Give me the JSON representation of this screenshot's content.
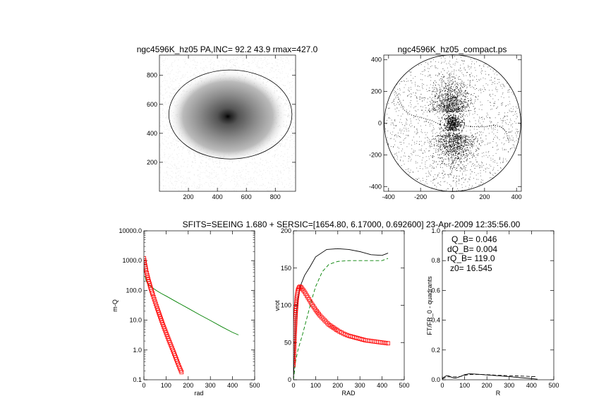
{
  "header": {
    "main_title": "SFITS=SEEING 1.680 + SERSIC=[1654.80, 6.17000, 0.692600]  23-Apr-2009 12:35:56.00"
  },
  "chart_data": [
    {
      "id": "image_panel",
      "type": "heatmap",
      "title": "ngc4596K_hz05 PA,INC= 92.2 43.9 rmax=427.0",
      "xlim": [
        0,
        940
      ],
      "ylim": [
        0,
        940
      ],
      "xticks": [
        200,
        400,
        600,
        800
      ],
      "yticks": [
        200,
        400,
        600,
        800
      ],
      "center": [
        490,
        530
      ],
      "ellipse_semi_axes": [
        425,
        307
      ],
      "colors": {
        "background": "#ffffff",
        "core": "#000000",
        "ellipse": "#000000"
      }
    },
    {
      "id": "compact_panel",
      "type": "scatter",
      "title": "ngc4596K_hz05_compact.ps",
      "xlim": [
        -430,
        430
      ],
      "ylim": [
        -430,
        430
      ],
      "xticks": [
        -400,
        -200,
        0,
        200,
        400
      ],
      "yticks": [
        -400,
        -200,
        0,
        200,
        400
      ],
      "circle_radius": 427,
      "inner_circle_radius": 75
    },
    {
      "id": "density_panel",
      "type": "line",
      "xlabel": "rad",
      "ylabel": "m-Q",
      "xlim": [
        0,
        500
      ],
      "ylim": [
        0.1,
        10000
      ],
      "log_y": true,
      "xticks": [
        0,
        100,
        200,
        300,
        400,
        500
      ],
      "yticks": [
        {
          "v": 10000,
          "label": "10000.0"
        },
        {
          "v": 1000,
          "label": "1000.0"
        },
        {
          "v": 100,
          "label": "100.0"
        },
        {
          "v": 10,
          "label": "10.0"
        },
        {
          "v": 1,
          "label": "1.0"
        },
        {
          "v": 0.1,
          "label": "0.1"
        }
      ],
      "series": [
        {
          "color": "#008000",
          "style": "solid",
          "x": [
            5,
            10,
            20,
            40,
            60,
            80,
            100,
            150,
            200,
            250,
            300,
            350,
            400,
            427
          ],
          "y": [
            300,
            210,
            160,
            120,
            95,
            78,
            65,
            40,
            25,
            15.5,
            9.8,
            6.1,
            3.9,
            3.2
          ]
        },
        {
          "color": "#ff0000",
          "style": "markers",
          "x": [
            0,
            5,
            10,
            15,
            20,
            30,
            40,
            50,
            60,
            70,
            80,
            90,
            100,
            110,
            120,
            130,
            140,
            150,
            160,
            170
          ],
          "y": [
            1200,
            720,
            470,
            320,
            230,
            125,
            72,
            42,
            25,
            15.5,
            9.6,
            6,
            3.8,
            2.4,
            1.55,
            1,
            0.65,
            0.42,
            0.27,
            0.18
          ]
        }
      ]
    },
    {
      "id": "rotation_panel",
      "type": "line",
      "xlabel": "RAD",
      "ylabel": "vrot",
      "xlim": [
        0,
        500
      ],
      "ylim": [
        0,
        200
      ],
      "xticks": [
        0,
        100,
        200,
        300,
        400,
        500
      ],
      "yticks": [
        0,
        50,
        100,
        150,
        200
      ],
      "series": [
        {
          "color": "#000000",
          "style": "solid",
          "x": [
            0,
            5,
            10,
            20,
            30,
            50,
            75,
            100,
            150,
            200,
            250,
            300,
            350,
            400,
            427
          ],
          "y": [
            0,
            40,
            80,
            110,
            125,
            140,
            152,
            165,
            175,
            176,
            175,
            172,
            168,
            167,
            170
          ]
        },
        {
          "color": "#008000",
          "style": "dashed",
          "x": [
            0,
            10,
            20,
            40,
            60,
            80,
            100,
            130,
            160,
            200,
            250,
            300,
            350,
            400,
            427
          ],
          "y": [
            0,
            25,
            40,
            60,
            82,
            105,
            125,
            145,
            155,
            159,
            160,
            160,
            160,
            160,
            163
          ]
        },
        {
          "color": "#ff0000",
          "style": "markers",
          "x": [
            0,
            5,
            10,
            15,
            20,
            25,
            30,
            35,
            40,
            50,
            60,
            70,
            80,
            100,
            120,
            140,
            160,
            180,
            200,
            225,
            250,
            275,
            300,
            325,
            350,
            375,
            400,
            427
          ],
          "y": [
            20,
            60,
            90,
            110,
            120,
            124,
            125,
            124,
            122,
            118,
            113,
            108,
            103,
            94,
            86,
            80,
            74,
            70,
            66,
            62,
            59,
            57,
            55,
            53,
            52,
            51,
            50,
            49
          ]
        }
      ]
    },
    {
      "id": "quadrants_panel",
      "type": "line",
      "xlabel": "R",
      "ylabel": "FT/FR_0 - quadrants",
      "xlim": [
        0,
        500
      ],
      "ylim": [
        0,
        1
      ],
      "xticks": [
        0,
        100,
        200,
        300,
        400,
        500
      ],
      "yticks": [
        {
          "v": 0,
          "label": "0.0"
        },
        {
          "v": 0.2,
          "label": "0.2"
        },
        {
          "v": 0.4,
          "label": "0.4"
        },
        {
          "v": 0.6,
          "label": "0.6"
        },
        {
          "v": 0.8,
          "label": "0.8"
        },
        {
          "v": 1.0,
          "label": "1.0"
        }
      ],
      "annotations": [
        "Q_B=  0.046",
        "dQ_B=  0.004",
        "rQ_B=  119.0",
        "z0= 16.545"
      ],
      "series": [
        {
          "color": "#000000",
          "style": "solid",
          "x": [
            0,
            10,
            20,
            30,
            40,
            50,
            60,
            70,
            80,
            100,
            120,
            140,
            160,
            200,
            250,
            300,
            350,
            400,
            427
          ],
          "y": [
            0.01,
            0.02,
            0.028,
            0.025,
            0.018,
            0.013,
            0.012,
            0.016,
            0.022,
            0.034,
            0.04,
            0.039,
            0.037,
            0.032,
            0.027,
            0.021,
            0.014,
            0.008,
            0.004
          ]
        },
        {
          "color": "#000000",
          "style": "dashed",
          "x": [
            0,
            20,
            40,
            60,
            80,
            100,
            120,
            140,
            160,
            200,
            250,
            300,
            350,
            400,
            427
          ],
          "y": [
            0.005,
            0.02,
            0.02,
            0.02,
            0.022,
            0.03,
            0.035,
            0.036,
            0.036,
            0.034,
            0.03,
            0.027,
            0.025,
            0.022,
            0.021
          ]
        }
      ]
    }
  ]
}
